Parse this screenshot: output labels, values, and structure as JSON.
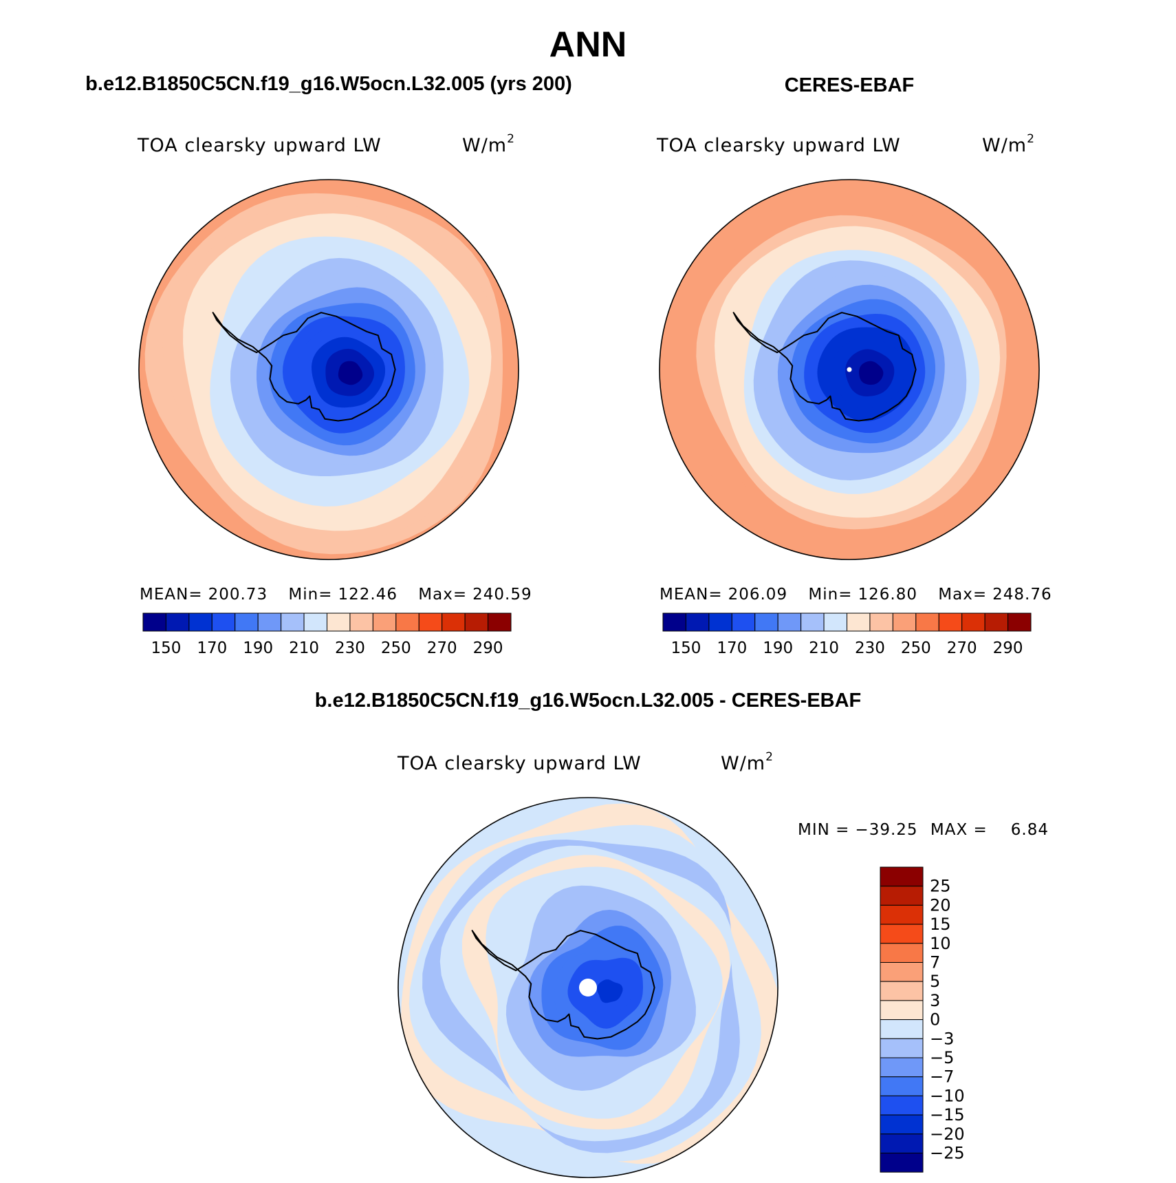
{
  "title": "ANN",
  "panels": [
    {
      "case_title": "b.e12.B1850C5CN.f19_g16.W5ocn.L32.005 (yrs 200)",
      "variable": "TOA clearsky upward LW",
      "units_base": "W/m",
      "units_exp": "2",
      "stats": {
        "mean_label": "MEAN=",
        "mean": "200.73",
        "min_label": "Min=",
        "min": "122.46",
        "max_label": "Max=",
        "max": "240.59"
      },
      "field": {
        "pole_value": 140,
        "ring_values": [
          148,
          152,
          160,
          170,
          178,
          185,
          193,
          201,
          208,
          214,
          219,
          224,
          228,
          232,
          236,
          240
        ],
        "ring_radii": [
          0.06,
          0.12,
          0.18,
          0.24,
          0.3,
          0.36,
          0.42,
          0.48,
          0.54,
          0.6,
          0.66,
          0.72,
          0.78,
          0.84,
          0.9,
          0.96
        ]
      }
    },
    {
      "case_title": "CERES-EBAF",
      "variable": "TOA clearsky upward LW",
      "units_base": "W/m",
      "units_exp": "2",
      "stats": {
        "mean_label": "MEAN=",
        "mean": "206.09",
        "min_label": "Min=",
        "min": "126.80",
        "max_label": "Max=",
        "max": "248.76"
      },
      "field": {
        "pole_value": 140,
        "ring_values": [
          146,
          152,
          160,
          168,
          176,
          184,
          192,
          200,
          208,
          216,
          222,
          228,
          234,
          240,
          244,
          248
        ],
        "ring_radii": [
          0.06,
          0.12,
          0.18,
          0.24,
          0.3,
          0.36,
          0.42,
          0.48,
          0.54,
          0.6,
          0.66,
          0.72,
          0.78,
          0.84,
          0.9,
          0.96
        ]
      }
    }
  ],
  "colorbar_abs": {
    "colors": [
      "#00008b",
      "#0019b2",
      "#0032d2",
      "#1e50f0",
      "#4178f5",
      "#6f98f8",
      "#a5c0fa",
      "#d2e6fc",
      "#fde6d2",
      "#fcc3a5",
      "#faa078",
      "#f87847",
      "#f54b19",
      "#db3006",
      "#b71c03",
      "#8b0000"
    ],
    "levels": [
      140,
      150,
      160,
      170,
      180,
      190,
      200,
      210,
      220,
      230,
      240,
      250,
      260,
      270,
      280,
      290
    ],
    "labels": [
      "150",
      "170",
      "190",
      "210",
      "230",
      "250",
      "270",
      "290"
    ]
  },
  "diff_panel": {
    "case_title": "b.e12.B1850C5CN.f19_g16.W5ocn.L32.005 - CERES-EBAF",
    "variable": "TOA clearsky upward LW",
    "units_base": "W/m",
    "units_exp": "2",
    "stats": {
      "min_label": "MIN =",
      "min": "−39.25",
      "max_label": "MAX =",
      "max": "6.84"
    },
    "field": {
      "pole_value": -18,
      "ring_values": [
        -18,
        -15,
        -12,
        -10,
        -8,
        -6,
        -5,
        -4,
        -3,
        -2,
        1,
        -2,
        -4,
        -3,
        1,
        -2
      ],
      "ring_radii": [
        0.06,
        0.12,
        0.18,
        0.24,
        0.3,
        0.36,
        0.42,
        0.48,
        0.54,
        0.6,
        0.66,
        0.72,
        0.78,
        0.84,
        0.9,
        0.96
      ]
    }
  },
  "colorbar_diff": {
    "colors": [
      "#8b0000",
      "#b71c03",
      "#db3006",
      "#f54b19",
      "#f87847",
      "#faa078",
      "#fcc3a5",
      "#fde6d2",
      "#d2e6fc",
      "#a5c0fa",
      "#6f98f8",
      "#4178f5",
      "#1e50f0",
      "#0032d2",
      "#0019b2",
      "#00008b"
    ],
    "labels": [
      "25",
      "20",
      "15",
      "10",
      "7",
      "5",
      "3",
      "0",
      "−3",
      "−5",
      "−7",
      "−10",
      "−15",
      "−20",
      "−25"
    ],
    "thresholds_desc": [
      25,
      20,
      15,
      10,
      7,
      5,
      3,
      0,
      -3,
      -5,
      -7,
      -10,
      -15,
      -20,
      -25
    ]
  }
}
